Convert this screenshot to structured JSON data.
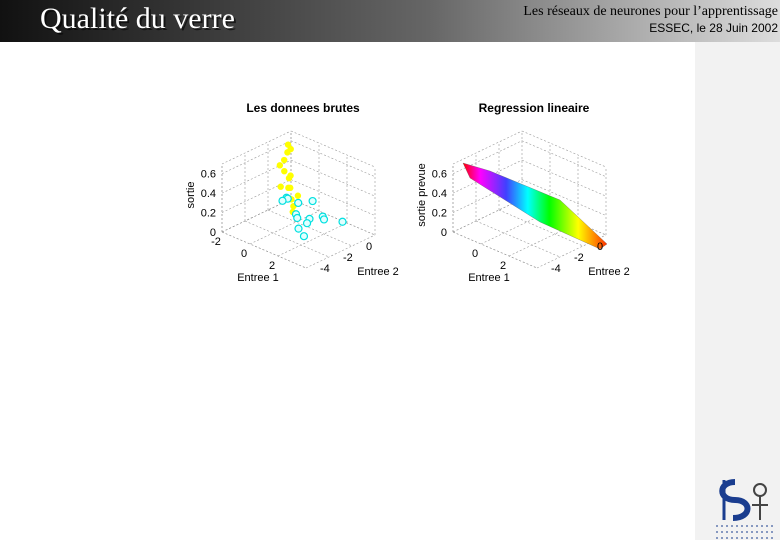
{
  "header": {
    "title": "Qualité du verre",
    "course": "Les réseaux de neurones pour  l’apprentissage",
    "event": "ESSEC, le 28 Juin 2002"
  },
  "plots": [
    {
      "title": "Les donnees brutes",
      "xlabel": "Entree 1",
      "ylabel": "Entree 2",
      "zlabel": "sortie",
      "xlim": [
        -2,
        4
      ],
      "ylim": [
        -4,
        2
      ],
      "zlim": [
        0,
        0.7
      ],
      "xticks": [
        -2,
        0,
        2
      ],
      "yticks": [
        0,
        -2,
        -4
      ],
      "zticks": [
        0,
        0.2,
        0.4,
        0.6
      ],
      "series": [
        {
          "color": "#ffff00",
          "marker": "dot",
          "x": [
            -1.8,
            -1.6,
            -1.5,
            -1.2,
            -1.0,
            -0.8,
            -0.5,
            -0.3,
            0.0,
            0.2,
            0.5,
            0.8,
            1.0,
            -1.4,
            -0.6,
            0.3
          ],
          "y": [
            1.5,
            1.2,
            0.8,
            1.0,
            0.2,
            0.5,
            0.0,
            -0.3,
            -0.5,
            -0.8,
            -1.0,
            -1.2,
            -1.5,
            0.3,
            -0.6,
            -0.2
          ],
          "z": [
            0.6,
            0.55,
            0.5,
            0.62,
            0.45,
            0.4,
            0.42,
            0.35,
            0.38,
            0.3,
            0.32,
            0.28,
            0.25,
            0.48,
            0.36,
            0.3
          ]
        },
        {
          "color": "#00e0e0",
          "marker": "circle",
          "x": [
            -1.5,
            -1.0,
            -0.5,
            0.0,
            0.5,
            1.0,
            1.5,
            2.0,
            2.5,
            -0.8,
            0.8,
            1.8,
            0.2,
            1.2
          ],
          "y": [
            1.0,
            0.5,
            0.8,
            0.0,
            -0.5,
            -1.0,
            0.5,
            0.0,
            1.0,
            -0.2,
            0.2,
            -1.5,
            1.2,
            -0.5
          ],
          "z": [
            0.1,
            0.15,
            0.12,
            0.08,
            0.1,
            0.05,
            0.12,
            0.15,
            0.1,
            0.18,
            0.07,
            0.05,
            0.16,
            0.09
          ]
        }
      ]
    },
    {
      "title": "Regression lineaire",
      "xlabel": "Entree 1",
      "ylabel": "Entree 2",
      "zlabel": "sortie prevue",
      "xlim": [
        -2,
        4
      ],
      "ylim": [
        -4,
        2
      ],
      "zlim": [
        0,
        0.7
      ],
      "xticks": [
        0,
        2
      ],
      "yticks": [
        0,
        -2,
        -4
      ],
      "zticks": [
        0,
        0.2,
        0.4,
        0.6
      ],
      "series": []
    }
  ]
}
